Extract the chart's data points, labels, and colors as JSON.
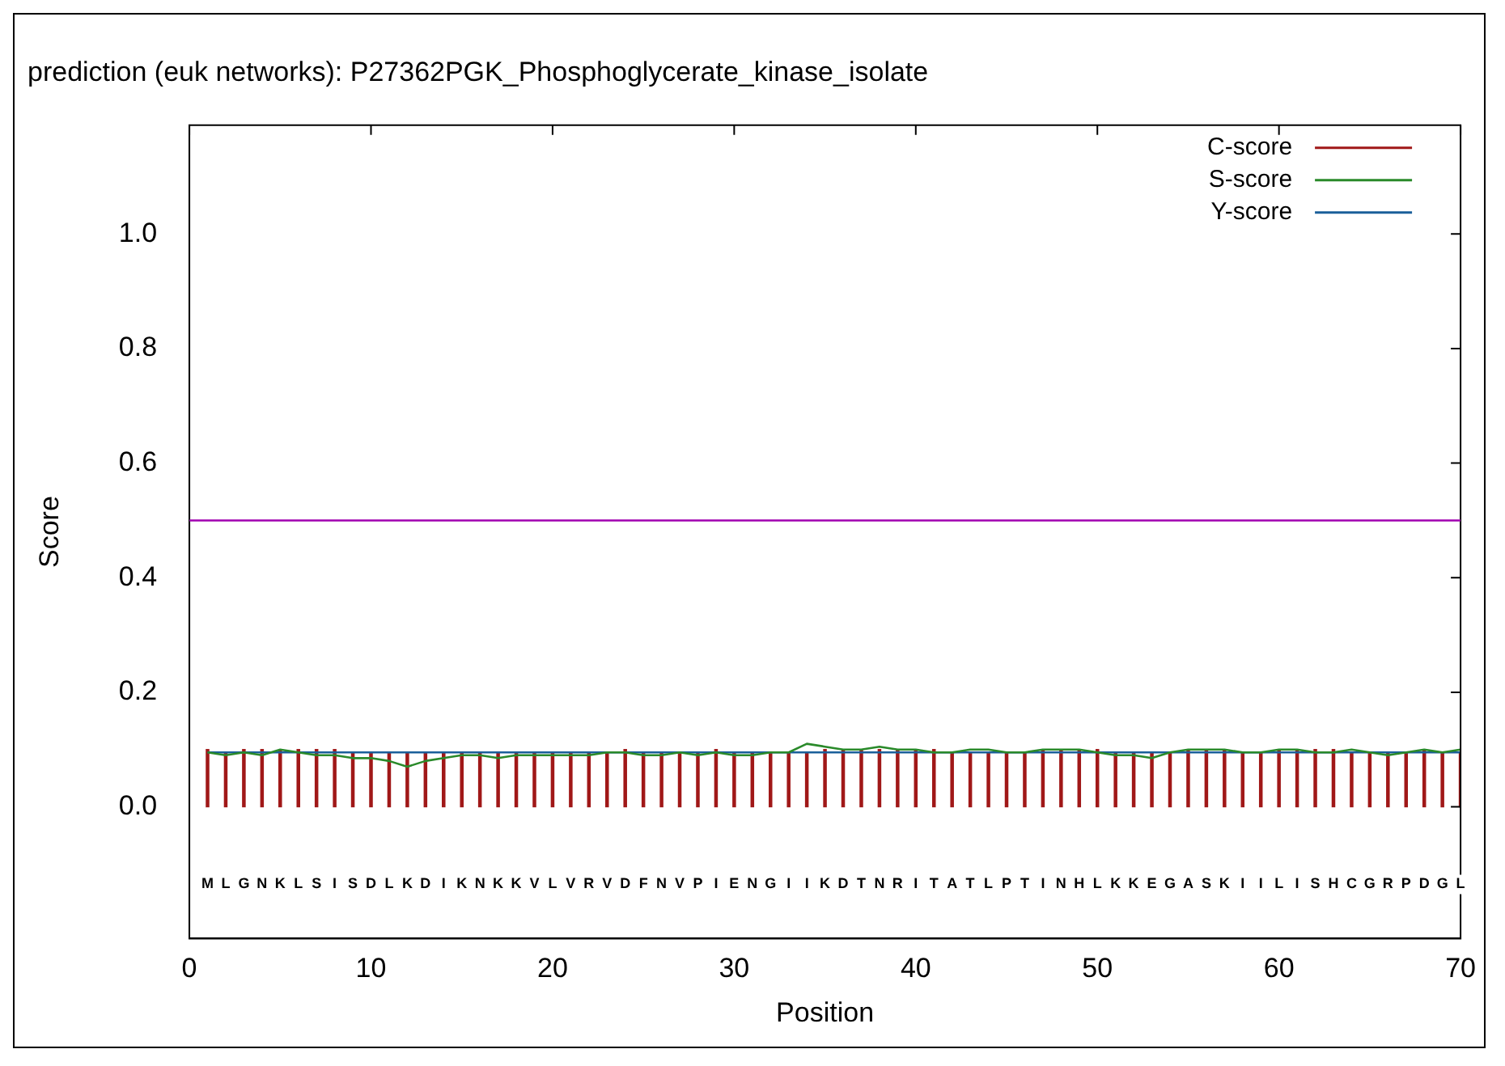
{
  "chart_data": {
    "type": "bar",
    "title": "prediction (euk networks): P27362PGK_Phosphoglycerate_kinase_isolate",
    "xlabel": "Position",
    "ylabel": "Score",
    "x": [
      1,
      2,
      3,
      4,
      5,
      6,
      7,
      8,
      9,
      10,
      11,
      12,
      13,
      14,
      15,
      16,
      17,
      18,
      19,
      20,
      21,
      22,
      23,
      24,
      25,
      26,
      27,
      28,
      29,
      30,
      31,
      32,
      33,
      34,
      35,
      36,
      37,
      38,
      39,
      40,
      41,
      42,
      43,
      44,
      45,
      46,
      47,
      48,
      49,
      50,
      51,
      52,
      53,
      54,
      55,
      56,
      57,
      58,
      59,
      60,
      61,
      62,
      63,
      64,
      65,
      66,
      67,
      68,
      69,
      70
    ],
    "series": [
      {
        "name": "C-score",
        "color": "#a01818",
        "values": [
          0.1,
          0.095,
          0.1,
          0.1,
          0.1,
          0.1,
          0.1,
          0.1,
          0.095,
          0.095,
          0.095,
          0.095,
          0.095,
          0.095,
          0.095,
          0.095,
          0.095,
          0.095,
          0.095,
          0.095,
          0.095,
          0.095,
          0.095,
          0.1,
          0.095,
          0.095,
          0.095,
          0.095,
          0.1,
          0.095,
          0.095,
          0.095,
          0.095,
          0.095,
          0.1,
          0.1,
          0.1,
          0.1,
          0.1,
          0.1,
          0.1,
          0.095,
          0.095,
          0.095,
          0.095,
          0.095,
          0.1,
          0.1,
          0.1,
          0.1,
          0.095,
          0.095,
          0.095,
          0.095,
          0.1,
          0.1,
          0.1,
          0.095,
          0.095,
          0.1,
          0.1,
          0.1,
          0.1,
          0.095,
          0.095,
          0.095,
          0.095,
          0.1,
          0.095,
          0.095
        ]
      },
      {
        "name": "S-score",
        "type": "line",
        "color": "#2a8a2a",
        "values": [
          0.095,
          0.09,
          0.095,
          0.09,
          0.1,
          0.095,
          0.09,
          0.09,
          0.085,
          0.085,
          0.08,
          0.07,
          0.08,
          0.085,
          0.09,
          0.09,
          0.085,
          0.09,
          0.09,
          0.09,
          0.09,
          0.09,
          0.095,
          0.095,
          0.09,
          0.09,
          0.095,
          0.09,
          0.095,
          0.09,
          0.09,
          0.095,
          0.095,
          0.11,
          0.105,
          0.1,
          0.1,
          0.105,
          0.1,
          0.1,
          0.095,
          0.095,
          0.1,
          0.1,
          0.095,
          0.095,
          0.1,
          0.1,
          0.1,
          0.095,
          0.09,
          0.09,
          0.085,
          0.095,
          0.1,
          0.1,
          0.1,
          0.095,
          0.095,
          0.1,
          0.1,
          0.095,
          0.095,
          0.1,
          0.095,
          0.09,
          0.095,
          0.1,
          0.095,
          0.1
        ]
      },
      {
        "name": "Y-score",
        "type": "line",
        "color": "#1a5f9a",
        "values": [
          0.095,
          0.095,
          0.095,
          0.095,
          0.095,
          0.095,
          0.095,
          0.095,
          0.095,
          0.095,
          0.095,
          0.095,
          0.095,
          0.095,
          0.095,
          0.095,
          0.095,
          0.095,
          0.095,
          0.095,
          0.095,
          0.095,
          0.095,
          0.095,
          0.095,
          0.095,
          0.095,
          0.095,
          0.095,
          0.095,
          0.095,
          0.095,
          0.095,
          0.095,
          0.095,
          0.095,
          0.095,
          0.095,
          0.095,
          0.095,
          0.095,
          0.095,
          0.095,
          0.095,
          0.095,
          0.095,
          0.095,
          0.095,
          0.095,
          0.095,
          0.095,
          0.095,
          0.095,
          0.095,
          0.095,
          0.095,
          0.095,
          0.095,
          0.095,
          0.095,
          0.095,
          0.095,
          0.095,
          0.095,
          0.095,
          0.095,
          0.095,
          0.095,
          0.095,
          0.095
        ]
      }
    ],
    "xlim": [
      0,
      70
    ],
    "xticks": [
      0,
      10,
      20,
      30,
      40,
      50,
      60,
      70
    ],
    "ylim": [
      -0.23,
      1.19
    ],
    "yticks": [
      {
        "value": 0,
        "label": "0.0"
      },
      {
        "value": 0.2,
        "label": "0.2"
      },
      {
        "value": 0.4,
        "label": "0.4"
      },
      {
        "value": 0.6,
        "label": "0.6"
      },
      {
        "value": 0.8,
        "label": "0.8"
      },
      {
        "value": 1,
        "label": "1.0"
      }
    ],
    "ref_lines": [
      {
        "axis": "y",
        "value": 0.5,
        "color": "#a000b0"
      }
    ],
    "legend": "top right",
    "grid": false,
    "annotations": [
      "M",
      "L",
      "G",
      "N",
      "K",
      "L",
      "S",
      "I",
      "S",
      "D",
      "L",
      "K",
      "D",
      "I",
      "K",
      "N",
      "K",
      "K",
      "V",
      "L",
      "V",
      "R",
      "V",
      "D",
      "F",
      "N",
      "V",
      "P",
      "I",
      "E",
      "N",
      "G",
      "I",
      "I",
      "K",
      "D",
      "T",
      "N",
      "R",
      "I",
      "T",
      "A",
      "T",
      "L",
      "P",
      "T",
      "I",
      "N",
      "H",
      "L",
      "K",
      "K",
      "E",
      "G",
      "A",
      "S",
      "K",
      "I",
      "I",
      "L",
      "I",
      "S",
      "H",
      "C",
      "G",
      "R",
      "P",
      "D",
      "G",
      "L"
    ]
  }
}
